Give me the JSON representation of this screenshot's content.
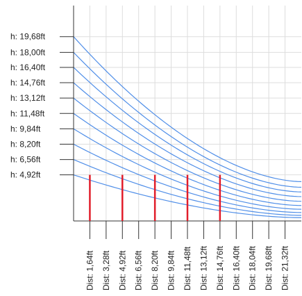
{
  "chart_data": {
    "type": "line",
    "title": "",
    "xlabel": "",
    "ylabel": "",
    "grid": true,
    "ylim": [
      0,
      23
    ],
    "xlim": [
      0,
      22.96
    ],
    "y_tick_labels": [
      "h: 19,68ft",
      "h: 18,00ft",
      "h: 16,40ft",
      "h: 14,76ft",
      "h: 13,12ft",
      "h: 11,48ft",
      "h: 9,84ft",
      "h: 8,20ft",
      "h: 6,56ft",
      "h: 4,92ft"
    ],
    "y_tick_values": [
      19.68,
      18.0,
      16.4,
      14.76,
      13.12,
      11.48,
      9.84,
      8.2,
      6.56,
      4.92
    ],
    "x_tick_labels": [
      "Dist: 1,64ft",
      "Dist: 3,28ft",
      "Dist: 4,92ft",
      "Dist: 6,56ft",
      "Dist: 8,20ft",
      "Dist: 9,84ft",
      "Dist: 11,48ft",
      "Dist: 13,12ft",
      "Dist: 14,76ft",
      "Dist: 16,40ft",
      "Dist: 18,04ft",
      "Dist: 19,68ft",
      "Dist: 21,32ft"
    ],
    "x_tick_values": [
      1.64,
      3.28,
      4.92,
      6.56,
      8.2,
      9.84,
      11.48,
      13.12,
      14.76,
      16.4,
      18.04,
      19.68,
      21.32
    ],
    "series": [
      {
        "x": [
          0,
          22.96
        ],
        "y": [
          19.68,
          4.2
        ]
      },
      {
        "x": [
          0,
          22.96
        ],
        "y": [
          18.0,
          3.6
        ]
      },
      {
        "x": [
          0,
          22.96
        ],
        "y": [
          16.4,
          3.1
        ]
      },
      {
        "x": [
          0,
          22.96
        ],
        "y": [
          14.76,
          2.6
        ]
      },
      {
        "x": [
          0,
          22.96
        ],
        "y": [
          13.12,
          2.1
        ]
      },
      {
        "x": [
          0,
          22.96
        ],
        "y": [
          11.48,
          1.65
        ]
      },
      {
        "x": [
          0,
          22.96
        ],
        "y": [
          9.84,
          1.25
        ]
      },
      {
        "x": [
          0,
          22.96
        ],
        "y": [
          8.2,
          0.9
        ]
      },
      {
        "x": [
          0,
          22.96
        ],
        "y": [
          6.56,
          0.6
        ]
      },
      {
        "x": [
          0,
          22.96
        ],
        "y": [
          4.92,
          0.35
        ]
      }
    ],
    "markers": {
      "x": [
        1.64,
        4.92,
        8.2,
        11.48,
        14.76
      ],
      "height": 4.92,
      "color": "#e11d2a"
    },
    "colors": {
      "curve": "#4f8ee8",
      "grid": "#dddddd",
      "axis": "#333333",
      "marker": "#e11d2a"
    }
  }
}
